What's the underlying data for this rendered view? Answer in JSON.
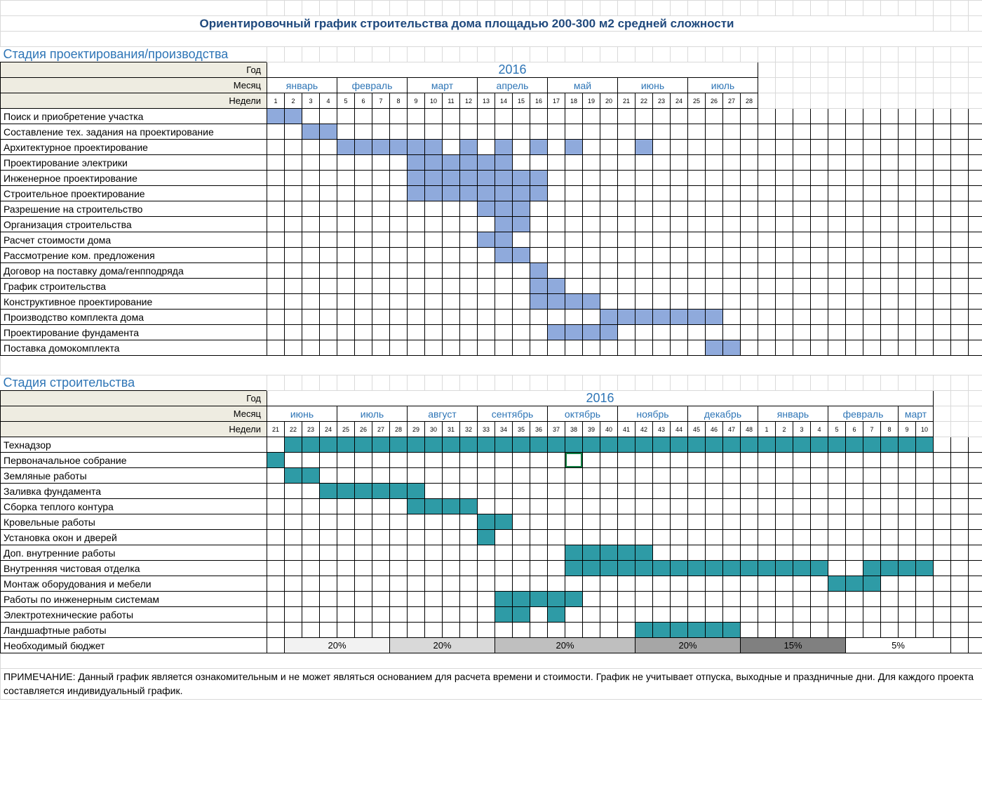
{
  "title": "Ориентировочный график строительства дома площадью 200-300 м2 средней сложности",
  "stage1": {
    "header": "Стадия проектирования/производства",
    "yearLabel": "Год",
    "year": "2016",
    "monthLabel": "Месяц",
    "weekLabel": "Недели",
    "months": [
      {
        "name": "январь",
        "span": 4
      },
      {
        "name": "февраль",
        "span": 4
      },
      {
        "name": "март",
        "span": 4
      },
      {
        "name": "апрель",
        "span": 4
      },
      {
        "name": "май",
        "span": 4
      },
      {
        "name": "июнь",
        "span": 4
      },
      {
        "name": "июль",
        "span": 4
      }
    ],
    "weeks": [
      "1",
      "2",
      "3",
      "4",
      "5",
      "6",
      "7",
      "8",
      "9",
      "10",
      "11",
      "12",
      "13",
      "14",
      "15",
      "16",
      "17",
      "18",
      "19",
      "20",
      "21",
      "22",
      "23",
      "24",
      "25",
      "26",
      "27",
      "28"
    ],
    "tasks": [
      {
        "label": "Поиск и приобретение участка",
        "bars": [
          1,
          2
        ]
      },
      {
        "label": "Составление тех. задания на проектирование",
        "bars": [
          3,
          4
        ]
      },
      {
        "label": "Архитектурное проектирование",
        "bars": [
          5,
          6,
          7,
          8,
          9,
          10,
          12,
          14,
          16,
          18,
          22
        ]
      },
      {
        "label": "Проектирование электрики",
        "bars": [
          9,
          10,
          11,
          12,
          13,
          14
        ]
      },
      {
        "label": "Инженерное проектирование",
        "bars": [
          9,
          10,
          11,
          12,
          13,
          14,
          15,
          16
        ]
      },
      {
        "label": "Строительное проектирование",
        "bars": [
          9,
          10,
          11,
          12,
          13,
          14,
          15,
          16
        ]
      },
      {
        "label": "Разрешение на строительство",
        "bars": [
          13,
          14,
          15
        ]
      },
      {
        "label": "Организация строительства",
        "bars": [
          14,
          15
        ]
      },
      {
        "label": "Расчет стоимости дома",
        "bars": [
          13,
          14
        ]
      },
      {
        "label": "Рассмотрение ком. предложения",
        "bars": [
          14,
          15
        ]
      },
      {
        "label": "Договор на поставку дома/генпподряда",
        "bars": [
          16
        ]
      },
      {
        "label": "График строительства",
        "bars": [
          16,
          17
        ]
      },
      {
        "label": "Конструктивное проектирование",
        "bars": [
          16,
          17,
          18,
          19
        ]
      },
      {
        "label": "Производство комплекта дома",
        "bars": [
          20,
          21,
          22,
          23,
          24,
          25,
          26
        ]
      },
      {
        "label": "Проектирование фундамента",
        "bars": [
          17,
          18,
          19,
          20
        ]
      },
      {
        "label": "Поставка домокомплекта",
        "bars": [
          26,
          27
        ]
      }
    ],
    "barColor": "#8faadc"
  },
  "stage2": {
    "header": "Стадия строительства",
    "yearLabel": "Год",
    "year": "2016",
    "monthLabel": "Месяц",
    "weekLabel": "Недели",
    "months": [
      {
        "name": "июнь",
        "span": 4
      },
      {
        "name": "июль",
        "span": 4
      },
      {
        "name": "август",
        "span": 4
      },
      {
        "name": "сентябрь",
        "span": 4
      },
      {
        "name": "октябрь",
        "span": 4
      },
      {
        "name": "ноябрь",
        "span": 4
      },
      {
        "name": "декабрь",
        "span": 4
      },
      {
        "name": "январь",
        "span": 4
      },
      {
        "name": "февраль",
        "span": 4
      },
      {
        "name": "март",
        "span": 2
      }
    ],
    "weeks": [
      "21",
      "22",
      "23",
      "24",
      "25",
      "26",
      "27",
      "28",
      "29",
      "30",
      "31",
      "32",
      "33",
      "34",
      "35",
      "36",
      "37",
      "38",
      "39",
      "40",
      "41",
      "42",
      "43",
      "44",
      "45",
      "46",
      "47",
      "48",
      "1",
      "2",
      "3",
      "4",
      "5",
      "6",
      "7",
      "8",
      "9",
      "10"
    ],
    "tasks": [
      {
        "label": "Технадзор",
        "bars": [
          2,
          3,
          4,
          5,
          6,
          7,
          8,
          9,
          10,
          11,
          12,
          13,
          14,
          15,
          16,
          17,
          18,
          19,
          20,
          21,
          22,
          23,
          24,
          25,
          26,
          27,
          28,
          29,
          30,
          31,
          32,
          33,
          34,
          35,
          36,
          37,
          38
        ]
      },
      {
        "label": "Первоначальное собрание",
        "bars": [
          1
        ],
        "sel": 18
      },
      {
        "label": "Земляные работы",
        "bars": [
          2,
          3
        ]
      },
      {
        "label": "Заливка фундамента",
        "bars": [
          4,
          5,
          6,
          7,
          8,
          9
        ]
      },
      {
        "label": "Сборка теплого контура",
        "bars": [
          9,
          10,
          11,
          12
        ]
      },
      {
        "label": "Кровельные работы",
        "bars": [
          13,
          14
        ]
      },
      {
        "label": "Установка окон и дверей",
        "bars": [
          13
        ]
      },
      {
        "label": "Доп. внутренние работы",
        "bars": [
          18,
          19,
          20,
          21,
          22
        ]
      },
      {
        "label": "Внутренняя чистовая отделка",
        "bars": [
          18,
          19,
          20,
          21,
          22,
          23,
          24,
          25,
          26,
          27,
          28,
          29,
          30,
          31,
          32,
          35,
          36,
          37,
          38
        ]
      },
      {
        "label": "Монтаж оборудования и мебели",
        "bars": [
          33,
          34,
          35
        ]
      },
      {
        "label": "Работы по инженерным системам",
        "bars": [
          14,
          15,
          16,
          17,
          18
        ]
      },
      {
        "label": "Электротехнические работы",
        "bars": [
          14,
          15,
          17
        ]
      },
      {
        "label": "Ландшафтные работы",
        "bars": [
          22,
          23,
          24,
          25,
          26,
          27
        ]
      }
    ],
    "budgetLabel": "Необходимый бюджет",
    "budget": [
      {
        "label": "20%",
        "span": 6,
        "shade": "bg1"
      },
      {
        "label": "20%",
        "span": 6,
        "shade": "bg2"
      },
      {
        "label": "20%",
        "span": 8,
        "shade": "bg3"
      },
      {
        "label": "20%",
        "span": 6,
        "shade": "bg4"
      },
      {
        "label": "15%",
        "span": 6,
        "shade": "bg5"
      },
      {
        "label": "5%",
        "span": 6,
        "shade": ""
      }
    ],
    "barColor": "#2e9ba6"
  },
  "note": "ПРИМЕЧАНИЕ: Данный график является ознакомительным и не может являться основанием для расчета времени и стоимости. График не учитывает отпуска, выходные и праздничные дни. Для каждого проекта составляется индивидуальный график."
}
